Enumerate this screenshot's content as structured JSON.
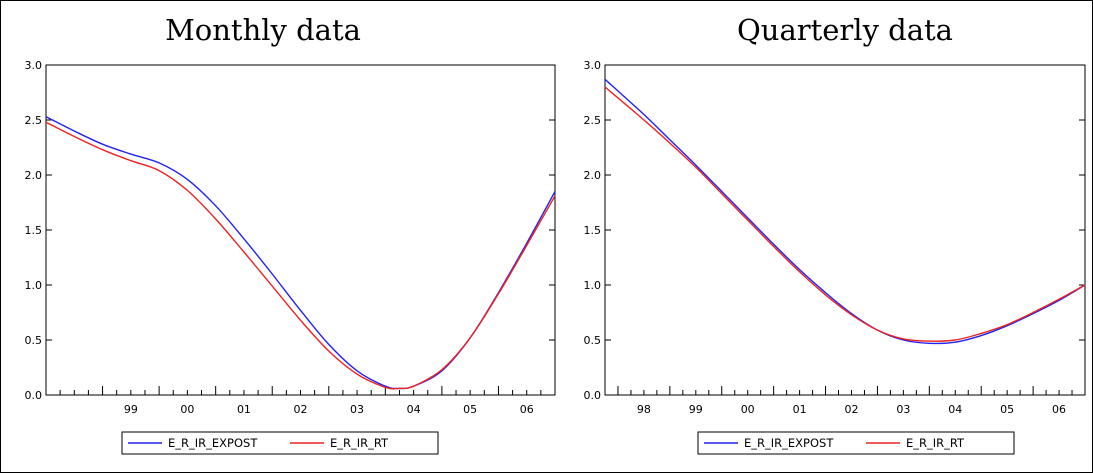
{
  "chart_data": [
    {
      "type": "line",
      "title": "Monthly data",
      "xlabel": "",
      "ylabel": "",
      "ylim": [
        0,
        3
      ],
      "yticks": [
        "0.0",
        "0.5",
        "1.0",
        "1.5",
        "2.0",
        "2.5",
        "3.0"
      ],
      "xlim": [
        1998.0,
        2007.0
      ],
      "xtick_labels": [
        "99",
        "00",
        "01",
        "02",
        "03",
        "04",
        "05",
        "06"
      ],
      "x": [
        1998.0,
        1998.5,
        1999.0,
        1999.5,
        2000.0,
        2000.5,
        2001.0,
        2001.5,
        2002.0,
        2002.5,
        2003.0,
        2003.5,
        2004.0,
        2004.25,
        2004.5,
        2005.0,
        2005.5,
        2006.0,
        2006.5,
        2007.0
      ],
      "series": [
        {
          "name": "E_R_IR_EXPOST",
          "color": "#2222ee",
          "values": [
            2.53,
            2.4,
            2.28,
            2.19,
            2.11,
            1.96,
            1.72,
            1.42,
            1.1,
            0.77,
            0.46,
            0.22,
            0.08,
            0.06,
            0.08,
            0.22,
            0.52,
            0.93,
            1.38,
            1.85
          ]
        },
        {
          "name": "E_R_IR_RT",
          "color": "#ee2222",
          "values": [
            2.48,
            2.35,
            2.23,
            2.13,
            2.04,
            1.86,
            1.6,
            1.3,
            0.99,
            0.68,
            0.4,
            0.19,
            0.07,
            0.06,
            0.08,
            0.23,
            0.52,
            0.92,
            1.36,
            1.81
          ]
        }
      ],
      "legend": "bottom-center",
      "grid": false
    },
    {
      "type": "line",
      "title": "Quarterly data",
      "xlabel": "",
      "ylabel": "",
      "ylim": [
        0,
        3
      ],
      "yticks": [
        "0.0",
        "0.5",
        "1.0",
        "1.5",
        "2.0",
        "2.5",
        "3.0"
      ],
      "xlim": [
        1997.75,
        2007.0
      ],
      "xtick_labels": [
        "98",
        "99",
        "00",
        "01",
        "02",
        "03",
        "04",
        "05",
        "06"
      ],
      "x": [
        1997.75,
        1998.5,
        1999.0,
        1999.5,
        2000.0,
        2000.5,
        2001.0,
        2001.5,
        2002.0,
        2002.5,
        2003.0,
        2003.5,
        2004.0,
        2004.5,
        2005.0,
        2005.5,
        2006.0,
        2006.5,
        2007.0
      ],
      "series": [
        {
          "name": "E_R_IR_EXPOST",
          "color": "#2222ee",
          "values": [
            2.87,
            2.55,
            2.32,
            2.09,
            1.85,
            1.61,
            1.37,
            1.14,
            0.93,
            0.74,
            0.59,
            0.5,
            0.47,
            0.48,
            0.54,
            0.63,
            0.74,
            0.86,
            1.0
          ]
        },
        {
          "name": "E_R_IR_RT",
          "color": "#ee2222",
          "values": [
            2.8,
            2.5,
            2.29,
            2.07,
            1.83,
            1.59,
            1.35,
            1.12,
            0.91,
            0.73,
            0.59,
            0.51,
            0.49,
            0.5,
            0.56,
            0.64,
            0.75,
            0.87,
            1.0
          ]
        }
      ],
      "legend": "bottom-center",
      "grid": false
    }
  ]
}
